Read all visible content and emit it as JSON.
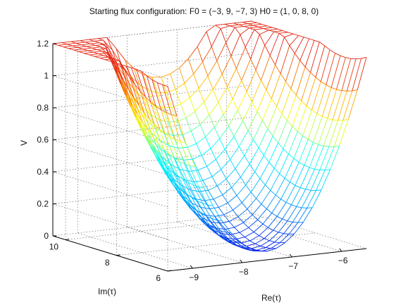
{
  "chart_data": {
    "type": "surface",
    "title": "Starting flux configuration: F0 = (−3, 9, −7, 3) H0 = (1, 0, 8, 0)",
    "xlabel": "Re(τ)",
    "ylabel": "Im(τ)",
    "zlabel": "V",
    "xlim": [
      -9.5,
      -5.5
    ],
    "ylim": [
      6,
      10.5
    ],
    "zlim": [
      0,
      1.2
    ],
    "xticks": [
      "−9",
      "−8",
      "−7",
      "−6"
    ],
    "yticks": [
      "6",
      "8",
      "10"
    ],
    "zticks": [
      "0",
      "0.2",
      "0.4",
      "0.6",
      "0.8",
      "1",
      "1.2"
    ],
    "grid": true,
    "colormap": "jet",
    "colors": {
      "low": "#0000ff",
      "mid": "#00ffff",
      "mid2": "#ffff00",
      "high": "#ff0000"
    },
    "surface_shape": "bowl-shaped potential with minimum near Re(τ) ≈ −7.5, Im(τ) ≈ 6.5; rises to about 1.08 near Re(τ) = −9.5, Im(τ) = 10.5"
  }
}
